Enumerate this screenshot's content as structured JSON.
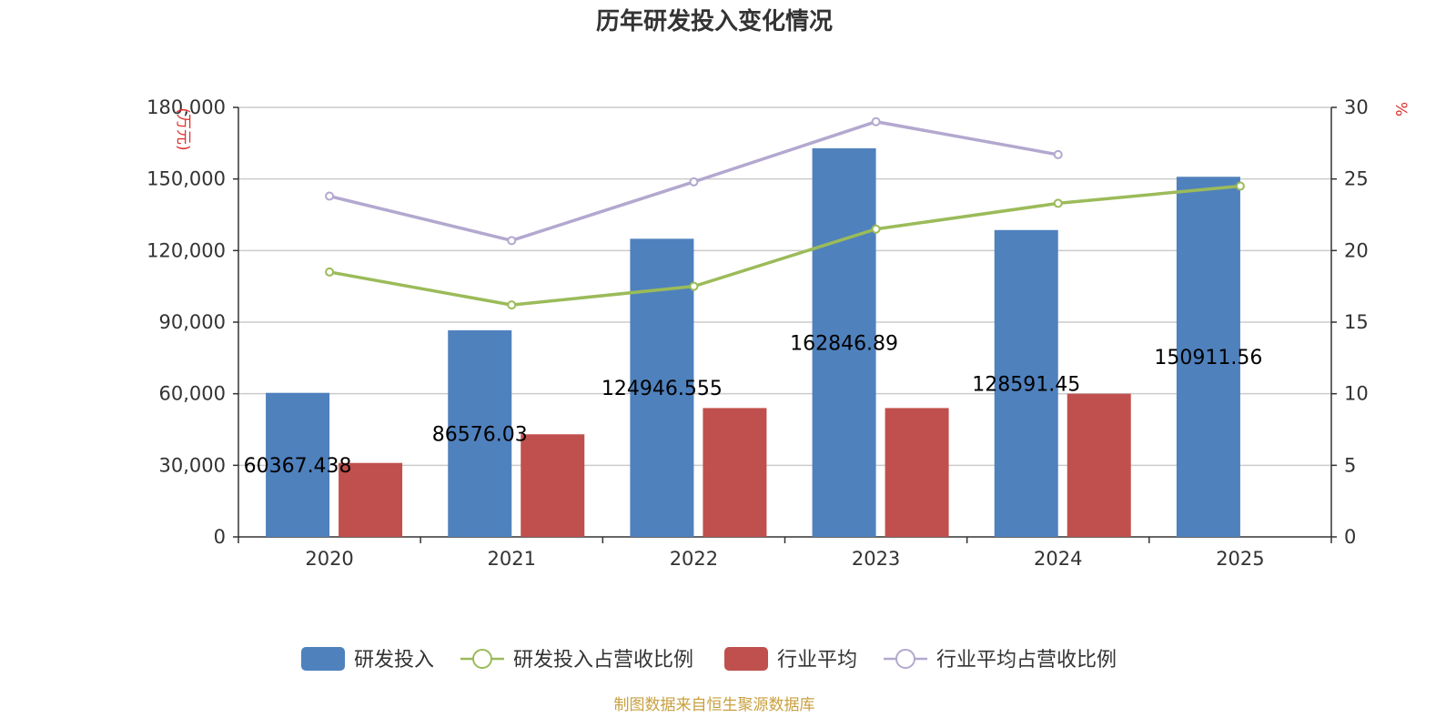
{
  "chart_data": {
    "type": "bar",
    "title": "历年研发投入变化情况",
    "categories": [
      "2020",
      "2021",
      "2022",
      "2023",
      "2024",
      "2025"
    ],
    "y_left": {
      "unit": "(万元)",
      "min": 0,
      "max": 180000,
      "ticks": [
        0,
        30000,
        60000,
        90000,
        120000,
        150000,
        180000
      ],
      "tick_labels": [
        "0",
        "30,000",
        "60,000",
        "90,000",
        "120,000",
        "150,000",
        "180,000"
      ]
    },
    "y_right": {
      "unit": "%",
      "min": 0,
      "max": 30,
      "ticks": [
        0,
        5,
        10,
        15,
        20,
        25,
        30
      ],
      "tick_labels": [
        "0",
        "5",
        "10",
        "15",
        "20",
        "25",
        "30"
      ]
    },
    "grid": true,
    "legend_position": "bottom",
    "series": [
      {
        "name": "研发投入",
        "type": "bar",
        "axis": "left",
        "color": "#4f81bd",
        "values": [
          60367.438,
          86576.03,
          124946.555,
          162846.89,
          128591.45,
          150911.56
        ],
        "labels": [
          "60367.438",
          "86576.03",
          "124946.555",
          "162846.89",
          "128591.45",
          "150911.56"
        ]
      },
      {
        "name": "研发投入占营收比例",
        "type": "line",
        "axis": "right",
        "color": "#9bbb59",
        "values": [
          18.5,
          16.2,
          17.5,
          21.5,
          23.3,
          24.5
        ]
      },
      {
        "name": "行业平均",
        "type": "bar",
        "axis": "left",
        "color": "#c0504d",
        "values": [
          31000,
          43000,
          54000,
          54000,
          60000,
          null
        ]
      },
      {
        "name": "行业平均占营收比例",
        "type": "line",
        "axis": "right",
        "color": "#b3a8cf",
        "values": [
          23.8,
          20.7,
          24.8,
          29.0,
          26.7,
          null
        ]
      }
    ],
    "source": "制图数据来自恒生聚源数据库",
    "colors": {
      "unit": "#e03030",
      "source": "#c8a040",
      "axis": "#333333",
      "grid": "#cccccc"
    }
  }
}
